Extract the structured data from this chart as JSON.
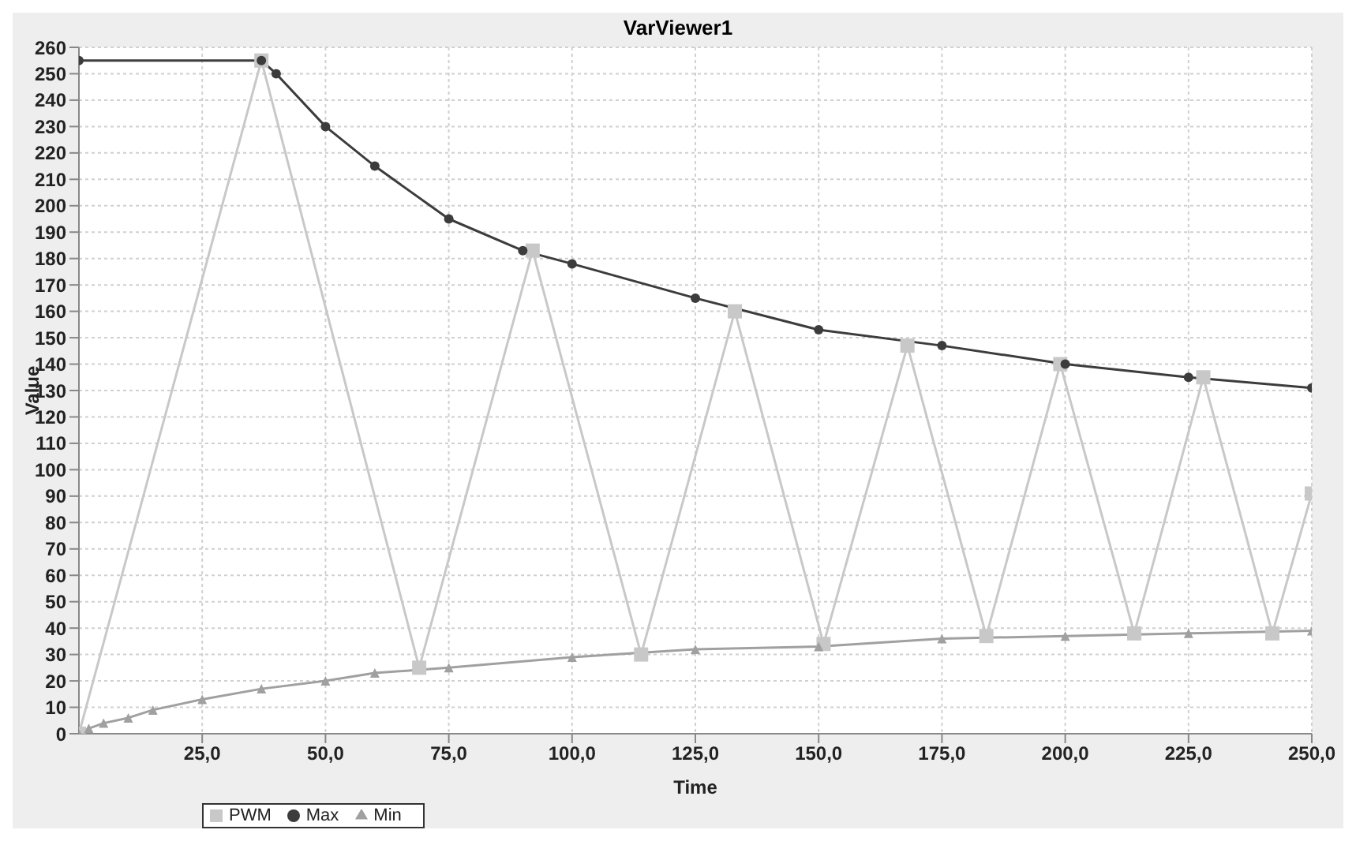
{
  "chart_data": {
    "type": "line",
    "title": "VarViewer1",
    "xlabel": "Time",
    "ylabel": "Value",
    "xlim": [
      0,
      250
    ],
    "ylim": [
      0,
      260
    ],
    "xticks": [
      {
        "value": 25,
        "label": "25,0"
      },
      {
        "value": 50,
        "label": "50,0"
      },
      {
        "value": 75,
        "label": "75,0"
      },
      {
        "value": 100,
        "label": "100,0"
      },
      {
        "value": 125,
        "label": "125,0"
      },
      {
        "value": 150,
        "label": "150,0"
      },
      {
        "value": 175,
        "label": "175,0"
      },
      {
        "value": 200,
        "label": "200,0"
      },
      {
        "value": 225,
        "label": "225,0"
      },
      {
        "value": 250,
        "label": "250,0"
      }
    ],
    "yticks": [
      0,
      10,
      20,
      30,
      40,
      50,
      60,
      70,
      80,
      90,
      100,
      110,
      120,
      130,
      140,
      150,
      160,
      170,
      180,
      190,
      200,
      210,
      220,
      230,
      240,
      250,
      260
    ],
    "grid": true,
    "legend": "bottom left",
    "series": [
      {
        "name": "PWM",
        "color": "#c8c8c8",
        "marker": "square",
        "x": [
          0,
          37,
          69,
          92,
          114,
          133,
          151,
          168,
          184,
          199,
          214,
          228,
          242,
          250
        ],
        "values": [
          0,
          255,
          25,
          183,
          30,
          160,
          34,
          147,
          37,
          140,
          38,
          135,
          38,
          91
        ]
      },
      {
        "name": "Max",
        "color": "#3c3c3c",
        "marker": "circle",
        "x": [
          0,
          37,
          40,
          50,
          60,
          75,
          90,
          100,
          125,
          150,
          175,
          200,
          225,
          250
        ],
        "values": [
          255,
          255,
          250,
          230,
          215,
          195,
          183,
          178,
          165,
          153,
          147,
          140,
          135,
          131
        ]
      },
      {
        "name": "Min",
        "color": "#a0a0a0",
        "marker": "triangle",
        "x": [
          0,
          2,
          5,
          10,
          15,
          25,
          37,
          50,
          60,
          75,
          100,
          125,
          150,
          175,
          200,
          225,
          250
        ],
        "values": [
          0,
          2,
          4,
          6,
          9,
          13,
          17,
          20,
          23,
          25,
          29,
          32,
          33,
          36,
          37,
          38,
          39
        ]
      }
    ]
  }
}
